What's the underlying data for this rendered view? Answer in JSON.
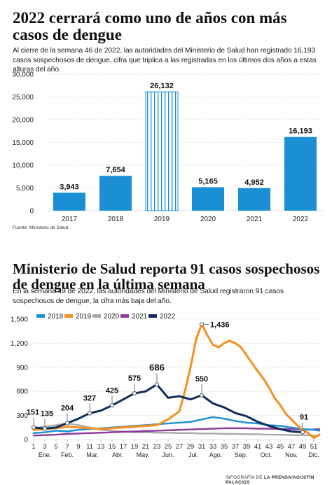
{
  "chart_top": {
    "title": "2022 cerrará como uno de años con más casos de dengue",
    "subtitle": "Al cierre de la semana 46 de 2022, las autoridades del Ministerio de Salud han registrado 16,193 casos sospechosos de dengue, cifra que triplica a las registradas en los últimos dos años a estas alturas del año.",
    "source": "Fuente: Ministerio de Salud",
    "chart_data": {
      "type": "bar",
      "categories": [
        "2017",
        "2018",
        "2019",
        "2020",
        "2021",
        "2022"
      ],
      "values": [
        3943,
        7654,
        26132,
        5165,
        4952,
        16193
      ],
      "value_labels": [
        "3,943",
        "7,654",
        "26,132",
        "5,165",
        "4,952",
        "16,193"
      ],
      "ylim": [
        0,
        30000
      ],
      "yticks": [
        0,
        5000,
        10000,
        15000,
        20000,
        25000,
        30000
      ],
      "ytick_labels": [
        "0",
        "5,000",
        "10,000",
        "15,000",
        "20,000",
        "25,000",
        "30,000"
      ],
      "highlight": "2019",
      "grid": true,
      "colors": {
        "bar": "#1a8fd4",
        "hatch": "#1a8fd4"
      }
    }
  },
  "chart_bottom": {
    "title": "Ministerio de Salud reporta 91 casos sospechosos de dengue en la última semana",
    "subtitle": "En la semana 49 de 2022, las autoridades del Ministerio de Salud registraron 91 casos sospechosos de dengue, la cifra más baja del año.",
    "credit_prefix": "INFOGRAFÍA DE ",
    "credit": "LA PRENSA/AGUSTÍN PALACIOS",
    "chart_data": {
      "type": "line",
      "xlabel_weeks": [
        "1",
        "3",
        "5",
        "7",
        "9",
        "11",
        "13",
        "15",
        "17",
        "19",
        "21",
        "23",
        "25",
        "27",
        "29",
        "31",
        "33",
        "35",
        "37",
        "39",
        "41",
        "43",
        "45",
        "47",
        "49",
        "51"
      ],
      "month_labels": [
        "Ene.",
        "Feb.",
        "Mar.",
        "Abr.",
        "May.",
        "Jun.",
        "Jul.",
        "Ago.",
        "Sep.",
        "Oct.",
        "Nov.",
        "Dic."
      ],
      "month_label_weeks": [
        3,
        7,
        11.5,
        16,
        20.5,
        25,
        29.5,
        33.5,
        38,
        42.5,
        47,
        51
      ],
      "ylim": [
        0,
        1500
      ],
      "yticks": [
        0,
        300,
        600,
        900,
        1200,
        1500
      ],
      "ytick_labels": [
        "0",
        "300",
        "600",
        "900",
        "1,200",
        "1,500"
      ],
      "legend_position": "top-left",
      "series": [
        {
          "name": "2018",
          "color": "#1a8fd4",
          "x": [
            1,
            3,
            5,
            7,
            9,
            11,
            13,
            15,
            17,
            19,
            21,
            23,
            25,
            27,
            29,
            31,
            33,
            35,
            37,
            39,
            41,
            43,
            45,
            47,
            49,
            51,
            52
          ],
          "y": [
            80,
            90,
            110,
            100,
            120,
            130,
            140,
            150,
            160,
            170,
            180,
            190,
            200,
            210,
            220,
            250,
            280,
            260,
            230,
            210,
            200,
            180,
            170,
            150,
            130,
            120,
            110
          ]
        },
        {
          "name": "2019",
          "color": "#f7901e",
          "x": [
            1,
            3,
            5,
            7,
            9,
            11,
            13,
            15,
            17,
            19,
            21,
            23,
            25,
            27,
            28,
            29,
            30,
            31,
            32,
            33,
            34,
            35,
            36,
            37,
            38,
            39,
            40,
            41,
            42,
            43,
            44,
            45,
            46,
            47,
            48,
            49,
            50,
            51,
            52
          ],
          "y": [
            120,
            130,
            140,
            160,
            150,
            140,
            130,
            140,
            150,
            160,
            170,
            180,
            250,
            350,
            600,
            900,
            1250,
            1436,
            1300,
            1180,
            1150,
            1200,
            1230,
            1200,
            1150,
            1050,
            950,
            850,
            760,
            650,
            520,
            430,
            320,
            250,
            180,
            120,
            80,
            20,
            60
          ]
        },
        {
          "name": "2020",
          "color": "#aaaaaa",
          "x": [
            1,
            3,
            5,
            7,
            9,
            11,
            13,
            15,
            17,
            19,
            21,
            23,
            25,
            27,
            29,
            31,
            33,
            35,
            37,
            39,
            41,
            43,
            45,
            47,
            49,
            51,
            52
          ],
          "y": [
            140,
            160,
            180,
            200,
            180,
            150,
            120,
            110,
            100,
            90,
            90,
            85,
            85,
            80,
            80,
            75,
            75,
            70,
            70,
            65,
            65,
            60,
            60,
            55,
            55,
            50,
            50
          ]
        },
        {
          "name": "2021",
          "color": "#8b3a96",
          "x": [
            1,
            3,
            5,
            7,
            9,
            11,
            13,
            15,
            17,
            19,
            21,
            23,
            25,
            27,
            29,
            31,
            33,
            35,
            37,
            39,
            41,
            43,
            45,
            47,
            49,
            51,
            52
          ],
          "y": [
            50,
            55,
            60,
            70,
            75,
            80,
            85,
            90,
            95,
            100,
            105,
            110,
            115,
            120,
            125,
            130,
            135,
            140,
            140,
            140,
            135,
            135,
            130,
            130,
            125,
            125,
            130
          ]
        },
        {
          "name": "2022",
          "color": "#0e2d5c",
          "x": [
            1,
            3,
            5,
            7,
            9,
            11,
            13,
            15,
            17,
            19,
            21,
            23,
            25,
            27,
            29,
            31,
            33,
            35,
            37,
            39,
            41,
            43,
            45,
            47,
            49
          ],
          "y": [
            151,
            135,
            150,
            204,
            260,
            327,
            360,
            425,
            500,
            575,
            600,
            686,
            520,
            540,
            500,
            550,
            450,
            400,
            330,
            290,
            220,
            170,
            130,
            100,
            91
          ]
        }
      ],
      "annotations": [
        {
          "label": "151",
          "series": "2022",
          "x": 1,
          "y": 151
        },
        {
          "label": "135",
          "series": "2022",
          "x": 3,
          "y": 135
        },
        {
          "label": "204",
          "series": "2022",
          "x": 7,
          "y": 204
        },
        {
          "label": "327",
          "series": "2022",
          "x": 11,
          "y": 327
        },
        {
          "label": "425",
          "series": "2022",
          "x": 15,
          "y": 425
        },
        {
          "label": "575",
          "series": "2022",
          "x": 19,
          "y": 575
        },
        {
          "label": "686",
          "series": "2022",
          "x": 23,
          "y": 686
        },
        {
          "label": "550",
          "series": "2022",
          "x": 31,
          "y": 550
        },
        {
          "label": "1,436",
          "series": "2019",
          "x": 31,
          "y": 1436
        },
        {
          "label": "91",
          "series": "2022",
          "x": 49,
          "y": 91
        }
      ]
    }
  }
}
